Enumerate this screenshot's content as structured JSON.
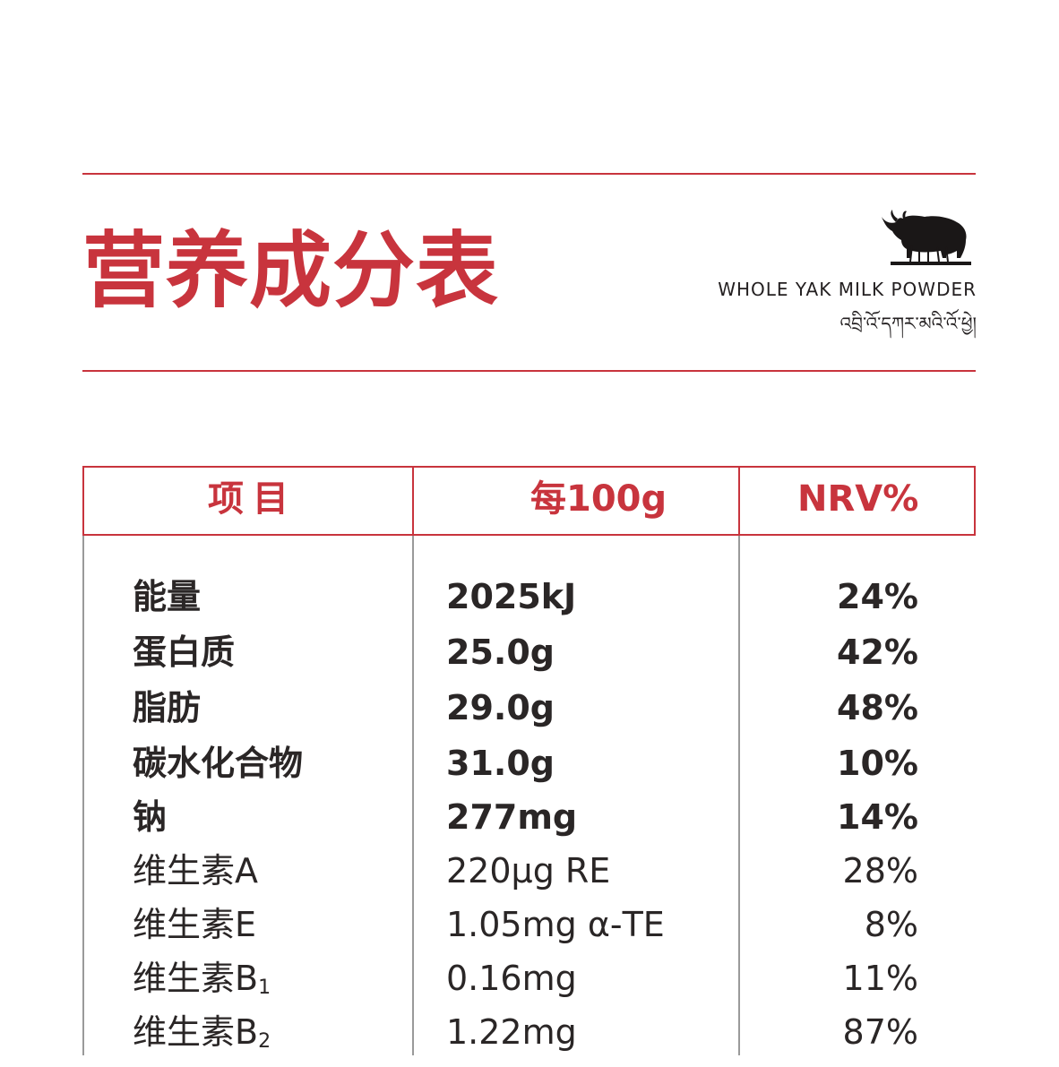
{
  "header": {
    "title": "营养成分表",
    "brand_en": "WHOLE YAK MILK POWDER",
    "brand_tibetan": "འབྲི་འོ་དཀར་མའི་འོ་ཕྱེ།",
    "logo_icon": "yak-icon"
  },
  "colors": {
    "accent": "#c8343d",
    "text": "#2a2626",
    "divider": "#9a9a9a"
  },
  "table": {
    "headers": [
      "项目",
      "每100g",
      "NRV%"
    ],
    "rows": [
      {
        "name": "能量",
        "amount": "2025kJ",
        "nrv": "24%",
        "weight": "bold"
      },
      {
        "name": "蛋白质",
        "amount": "25.0g",
        "nrv": "42%",
        "weight": "bold"
      },
      {
        "name": "脂肪",
        "amount": "29.0g",
        "nrv": "48%",
        "weight": "bold"
      },
      {
        "name": "碳水化合物",
        "amount": "31.0g",
        "nrv": "10%",
        "weight": "bold"
      },
      {
        "name": "钠",
        "amount": "277mg",
        "nrv": "14%",
        "weight": "bold"
      },
      {
        "name": "维生素A",
        "amount": "220μg RE",
        "nrv": "28%",
        "weight": "regular"
      },
      {
        "name": "维生素E",
        "amount": "1.05mg α-TE",
        "nrv": "8%",
        "weight": "regular"
      },
      {
        "name": "维生素B",
        "name_sub": "1",
        "amount": "0.16mg",
        "nrv": "11%",
        "weight": "regular"
      },
      {
        "name": "维生素B",
        "name_sub": "2",
        "amount": "1.22mg",
        "nrv": "87%",
        "weight": "regular"
      }
    ]
  }
}
